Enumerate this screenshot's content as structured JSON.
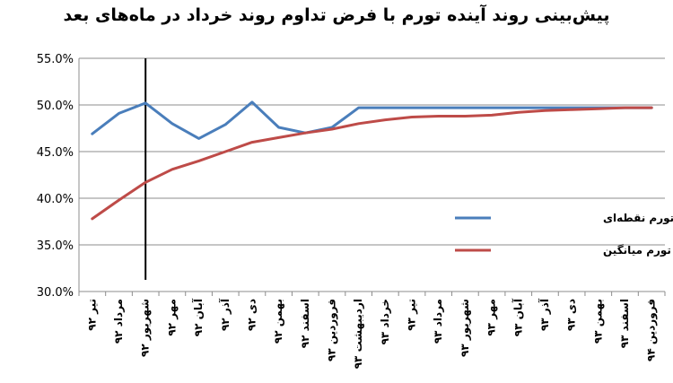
{
  "chart_data": {
    "type": "line",
    "title": "پیش‌بینی روند آینده تورم با فرض تداوم روند خرداد در ماه‌های بعد",
    "xlabel": "",
    "ylabel": "",
    "ylim": [
      30,
      55
    ],
    "yticks": [
      "30.0%",
      "35.0%",
      "40.0%",
      "45.0%",
      "50.0%",
      "55.0%"
    ],
    "grid": true,
    "legend": "right",
    "categories": [
      "تیر ۹۲",
      "مرداد ۹۲",
      "شهریور ۹۲",
      "مهر ۹۲",
      "آبان ۹۲",
      "آذر ۹۲",
      "دی ۹۲",
      "بهمن ۹۲",
      "اسفند ۹۲",
      "فروردین ۹۳",
      "اردیبهشت ۹۳",
      "خرداد ۹۳",
      "تیر ۹۳",
      "مرداد ۹۳",
      "شهریور ۹۳",
      "مهر ۹۳",
      "آبان ۹۳",
      "آذر ۹۳",
      "دی ۹۳",
      "بهمن ۹۳",
      "اسفند ۹۳",
      "فروردین ۹۴"
    ],
    "vline_category": "شهریور ۹۲",
    "series": [
      {
        "name": "نرخ تورم نقطه‌ای",
        "color": "#4a7ebb",
        "values": [
          46.9,
          49.1,
          50.2,
          48.0,
          46.4,
          47.9,
          50.3,
          47.6,
          47.0,
          47.6,
          49.7,
          49.7,
          49.7,
          49.7,
          49.7,
          49.7,
          49.7,
          49.7,
          49.7,
          49.7,
          49.7,
          49.7
        ]
      },
      {
        "name": "نرخ تورم میانگین",
        "color": "#be4b48",
        "values": [
          37.8,
          39.8,
          41.7,
          43.1,
          44.0,
          45.0,
          46.0,
          46.5,
          47.0,
          47.4,
          48.0,
          48.4,
          48.7,
          48.8,
          48.8,
          48.9,
          49.2,
          49.4,
          49.5,
          49.6,
          49.7,
          49.7
        ]
      }
    ]
  }
}
